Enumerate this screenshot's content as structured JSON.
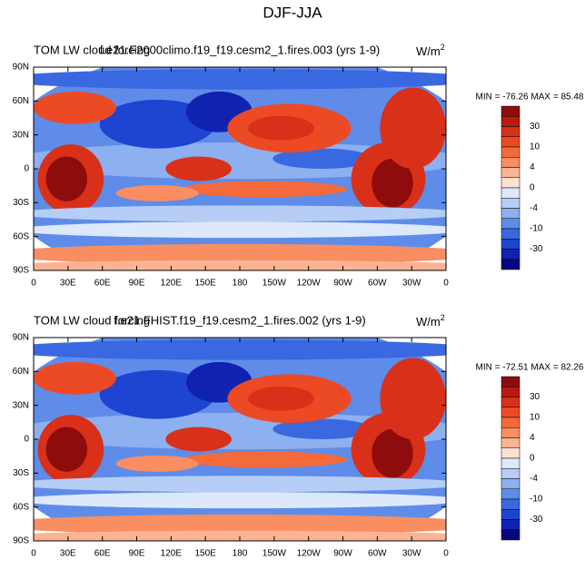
{
  "title": "DJF-JJA",
  "panels": [
    {
      "left_title": "TOM LW cloud forcing",
      "center_title": "f.e21.F2000climo.f19_f19.cesm2_1.fires.003 (yrs 1-9)",
      "units": "W/m",
      "units_sup": "2",
      "stats": "MIN = -76.26 MAX =  85.48"
    },
    {
      "left_title": "TOM LW cloud forcing",
      "center_title": "f.e21.FHIST.f19_f19.cesm2_1.fires.002 (yrs 1-9)",
      "units": "W/m",
      "units_sup": "2",
      "stats": "MIN = -72.51 MAX =  82.26"
    }
  ],
  "lat_labels": [
    "90N",
    "60N",
    "30N",
    "0",
    "30S",
    "60S",
    "90S"
  ],
  "lon_labels": [
    "0",
    "30E",
    "60E",
    "90E",
    "120E",
    "150E",
    "180",
    "150W",
    "120W",
    "90W",
    "60W",
    "30W",
    "0"
  ],
  "colorbar_labels": [
    "30",
    "10",
    "4",
    "0",
    "-4",
    "-10",
    "-30"
  ]
}
